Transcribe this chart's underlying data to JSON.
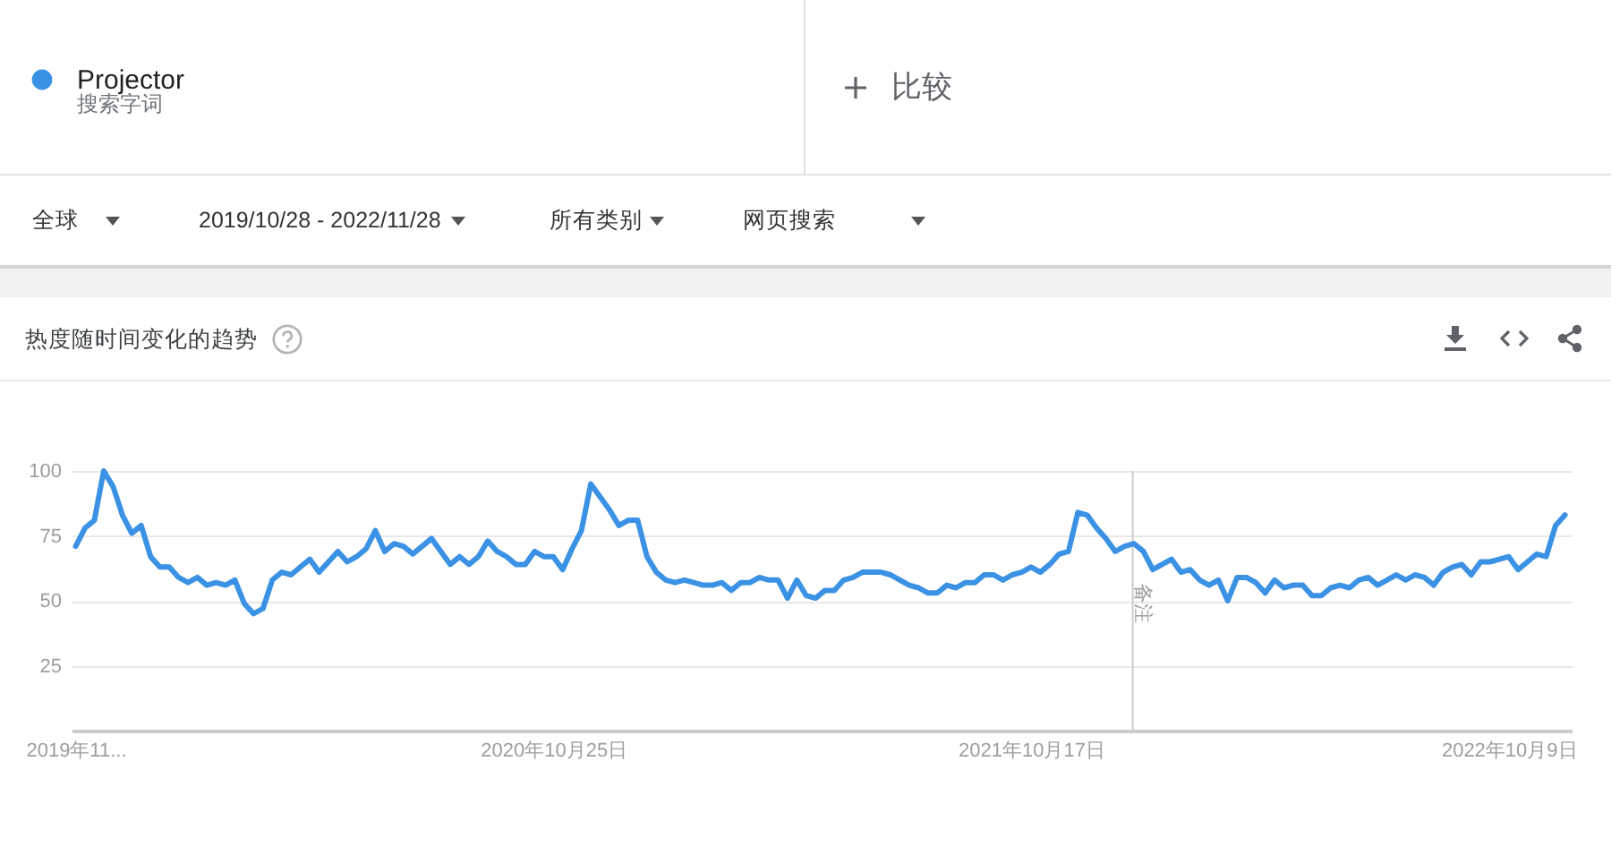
{
  "chart_data": {
    "type": "line",
    "title": "热度随时间变化的趋势",
    "annotations": [
      "搜索字词",
      "比较",
      "全球",
      "2019/10/28 - 2022/11/28",
      "所有类别",
      "网页搜索"
    ],
    "x": [
      "2019-11-03",
      "2019-11-10",
      "2019-11-17",
      "2019-11-24",
      "2019-12-01",
      "2019-12-08",
      "2019-12-15",
      "2019-12-22",
      "2019-12-29",
      "2020-01-05",
      "2020-01-12",
      "2020-01-19",
      "2020-01-26",
      "2020-02-02",
      "2020-02-09",
      "2020-02-16",
      "2020-02-23",
      "2020-03-01",
      "2020-03-08",
      "2020-03-15",
      "2020-03-22",
      "2020-03-29",
      "2020-04-05",
      "2020-04-12",
      "2020-04-19",
      "2020-04-26",
      "2020-05-03",
      "2020-05-10",
      "2020-05-17",
      "2020-05-24",
      "2020-05-31",
      "2020-06-07",
      "2020-06-14",
      "2020-06-21",
      "2020-06-28",
      "2020-07-05",
      "2020-07-12",
      "2020-07-19",
      "2020-07-26",
      "2020-08-02",
      "2020-08-09",
      "2020-08-16",
      "2020-08-23",
      "2020-08-30",
      "2020-09-06",
      "2020-09-13",
      "2020-09-20",
      "2020-09-27",
      "2020-10-04",
      "2020-10-11",
      "2020-10-18",
      "2020-10-25",
      "2020-11-01",
      "2020-11-08",
      "2020-11-15",
      "2020-11-22",
      "2020-11-29",
      "2020-12-06",
      "2020-12-13",
      "2020-12-20",
      "2020-12-27",
      "2021-01-03",
      "2021-01-10",
      "2021-01-17",
      "2021-01-24",
      "2021-01-31",
      "2021-02-07",
      "2021-02-14",
      "2021-02-21",
      "2021-02-28",
      "2021-03-07",
      "2021-03-14",
      "2021-03-21",
      "2021-03-28",
      "2021-04-04",
      "2021-04-11",
      "2021-04-18",
      "2021-04-25",
      "2021-05-02",
      "2021-05-09",
      "2021-05-16",
      "2021-05-23",
      "2021-05-30",
      "2021-06-06",
      "2021-06-13",
      "2021-06-20",
      "2021-06-27",
      "2021-07-04",
      "2021-07-11",
      "2021-07-18",
      "2021-07-25",
      "2021-08-01",
      "2021-08-08",
      "2021-08-15",
      "2021-08-22",
      "2021-08-29",
      "2021-09-05",
      "2021-09-12",
      "2021-09-19",
      "2021-09-26",
      "2021-10-03",
      "2021-10-10",
      "2021-10-17",
      "2021-10-24",
      "2021-10-31",
      "2021-11-07",
      "2021-11-14",
      "2021-11-21",
      "2021-11-28",
      "2021-12-05",
      "2021-12-12",
      "2021-12-19",
      "2021-12-26",
      "2022-01-02",
      "2022-01-09",
      "2022-01-16",
      "2022-01-23",
      "2022-01-30",
      "2022-02-06",
      "2022-02-13",
      "2022-02-20",
      "2022-02-27",
      "2022-03-06",
      "2022-03-13",
      "2022-03-20",
      "2022-03-27",
      "2022-04-03",
      "2022-04-10",
      "2022-04-17",
      "2022-04-24",
      "2022-05-01",
      "2022-05-08",
      "2022-05-15",
      "2022-05-22",
      "2022-05-29",
      "2022-06-05",
      "2022-06-12",
      "2022-06-19",
      "2022-06-26",
      "2022-07-03",
      "2022-07-10",
      "2022-07-17",
      "2022-07-24",
      "2022-07-31",
      "2022-08-07",
      "2022-08-14",
      "2022-08-21",
      "2022-08-28",
      "2022-09-04",
      "2022-09-11",
      "2022-09-18",
      "2022-09-25",
      "2022-10-02",
      "2022-10-09",
      "2022-10-16",
      "2022-10-23",
      "2022-10-30",
      "2022-11-06",
      "2022-11-13",
      "2022-11-20"
    ],
    "series": [
      {
        "name": "Projector",
        "color": "#3b92e4",
        "values": [
          71,
          78,
          81,
          100,
          94,
          83,
          76,
          79,
          67,
          63,
          63,
          59,
          57,
          59,
          56,
          57,
          56,
          58,
          49,
          45,
          47,
          58,
          61,
          60,
          63,
          66,
          61,
          65,
          69,
          65,
          67,
          70,
          77,
          69,
          72,
          71,
          68,
          71,
          74,
          69,
          64,
          67,
          64,
          67,
          73,
          69,
          67,
          64,
          64,
          69,
          67,
          67,
          62,
          70,
          77,
          95,
          90,
          85,
          79,
          81,
          81,
          67,
          61,
          58,
          57,
          58,
          57,
          56,
          56,
          57,
          54,
          57,
          57,
          59,
          58,
          58,
          51,
          58,
          52,
          51,
          54,
          54,
          58,
          59,
          61,
          61,
          61,
          60,
          58,
          56,
          55,
          53,
          53,
          56,
          55,
          57,
          57,
          60,
          60,
          58,
          60,
          61,
          63,
          61,
          64,
          68,
          69,
          84,
          83,
          78,
          74,
          69,
          71,
          72,
          69,
          62,
          64,
          66,
          61,
          62,
          58,
          56,
          58,
          50,
          59,
          59,
          57,
          53,
          58,
          55,
          56,
          56,
          52,
          52,
          55,
          56,
          55,
          58,
          59,
          56,
          58,
          60,
          58,
          60,
          59,
          56,
          61,
          63,
          64,
          60,
          65,
          65,
          66,
          67,
          62,
          65,
          68,
          67,
          79,
          83
        ]
      }
    ],
    "xlim": [
      "2019-10-31",
      "2022-11-25"
    ],
    "xticks": [
      {
        "value": "2019-11-03",
        "label": "2019年11..."
      },
      {
        "value": "2020-10-25",
        "label": "2020年10月25日"
      },
      {
        "value": "2021-10-17",
        "label": "2021年10月17日"
      },
      {
        "value": "2022-10-09",
        "label": "2022年10月9日"
      }
    ],
    "ylim": [
      0,
      100
    ],
    "yticks": [
      25,
      50,
      75,
      100
    ],
    "grid": "y",
    "legend": "top left",
    "ref_lines": [
      {
        "axis": "x",
        "value": "2022-01-01",
        "label": "备注",
        "color": "#cccccc"
      }
    ]
  }
}
